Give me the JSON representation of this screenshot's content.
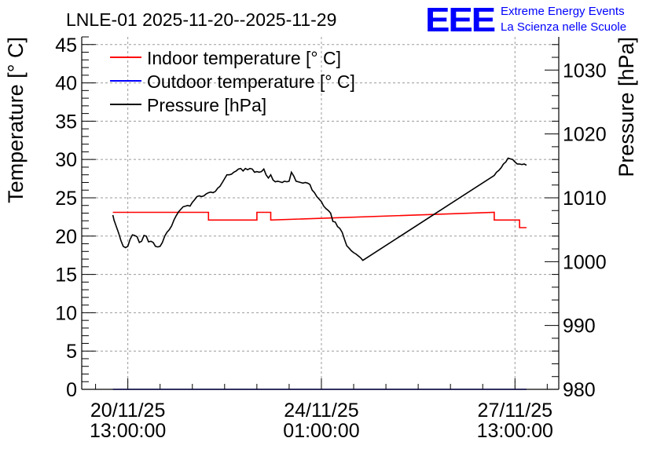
{
  "chart_data": {
    "type": "line",
    "title": "LNLE-01 2025-11-20--2025-11-29",
    "logo": {
      "mark": "EEE",
      "line1": "Extreme Energy Events",
      "line2": "La Scienza nelle Scuole",
      "color": "#0000ff"
    },
    "ylabel": "Temperature [° C]",
    "y2label": "Pressure [hPa]",
    "ylim": [
      0,
      46
    ],
    "y2lim": [
      980,
      1035.2
    ],
    "yticks": [
      0,
      5,
      10,
      15,
      20,
      25,
      30,
      35,
      40,
      45
    ],
    "y2ticks": [
      980,
      990,
      1000,
      1010,
      1020,
      1030
    ],
    "x_unit": "hours since 2025-11-20 00:00",
    "xlim": [
      -7.0,
      200.0
    ],
    "xticks": [
      {
        "x": 13,
        "date": "20/11/25",
        "time": "13:00:00"
      },
      {
        "x": 97,
        "date": "24/11/25",
        "time": "01:00:00"
      },
      {
        "x": 181,
        "date": "27/11/25",
        "time": "13:00:00"
      }
    ],
    "grid": true,
    "legend": [
      {
        "label": "Indoor temperature [° C]",
        "color": "#ff0000"
      },
      {
        "label": "Outdoor temperature [° C]",
        "color": "#0000ff"
      },
      {
        "label": "Pressure [hPa]",
        "color": "#000000"
      }
    ],
    "series": [
      {
        "name": "Indoor temperature [° C]",
        "axis": "left",
        "color": "#ff0000",
        "x": [
          6.5,
          48,
          48,
          69,
          69,
          75,
          75,
          172,
          172,
          183,
          183,
          186
        ],
        "y": [
          23.1,
          23.1,
          22.1,
          22.1,
          23.1,
          23.1,
          22.1,
          23.1,
          22.1,
          22.1,
          21.1,
          21.1
        ]
      },
      {
        "name": "Outdoor temperature [° C]",
        "axis": "left",
        "color": "#0000ff",
        "x": [
          6.5,
          186
        ],
        "y": [
          0,
          0
        ]
      },
      {
        "name": "Pressure [hPa]",
        "axis": "right",
        "color": "#000000",
        "x": [
          6.5,
          7,
          8,
          9,
          10,
          11,
          12,
          13,
          14,
          15,
          16,
          17,
          18,
          19,
          20,
          21,
          22,
          23,
          24,
          25,
          26,
          27,
          28,
          29,
          30,
          31,
          32,
          33,
          34,
          35,
          36,
          37,
          38,
          39,
          40,
          41,
          42,
          43,
          44,
          45,
          46,
          47,
          48,
          49,
          50,
          51,
          52,
          53,
          54,
          55,
          56,
          57,
          58,
          59,
          60,
          61,
          62,
          63,
          64,
          65,
          66,
          67,
          68,
          69,
          70,
          71,
          72,
          73,
          74,
          75,
          76,
          77,
          78,
          79,
          80,
          81,
          82,
          83,
          84,
          85,
          86,
          87,
          88,
          89,
          90,
          91,
          92,
          93,
          94,
          95,
          96,
          97,
          98,
          99,
          100,
          101,
          102,
          103,
          104,
          105,
          106,
          107,
          108,
          109,
          110,
          111,
          112,
          113,
          114,
          115,
          172,
          173,
          174,
          175,
          176,
          177,
          178,
          179,
          180,
          181,
          182,
          183,
          184,
          185,
          186
        ],
        "y": [
          1007.3,
          1006.5,
          1005.5,
          1004.5,
          1003.3,
          1002.4,
          1002.2,
          1002.4,
          1003.5,
          1004.2,
          1004.1,
          1003.9,
          1003.0,
          1003.2,
          1004.1,
          1004.0,
          1003.1,
          1003.2,
          1003.0,
          1002.4,
          1002.3,
          1002.4,
          1003.0,
          1004.0,
          1004.6,
          1005.0,
          1005.6,
          1006.5,
          1007.2,
          1007.8,
          1008.2,
          1008.6,
          1008.7,
          1008.8,
          1008.7,
          1009.3,
          1009.7,
          1010.2,
          1010.3,
          1010.2,
          1010.3,
          1010.6,
          1010.8,
          1010.9,
          1010.8,
          1011.0,
          1011.5,
          1011.8,
          1012.4,
          1013.0,
          1013.6,
          1013.6,
          1013.7,
          1014.0,
          1014.2,
          1014.5,
          1014.6,
          1014.2,
          1014.6,
          1014.4,
          1014.6,
          1014.5,
          1014.0,
          1014.1,
          1014.0,
          1014.1,
          1014.5,
          1013.6,
          1013.1,
          1013.6,
          1012.8,
          1012.5,
          1012.6,
          1012.5,
          1012.4,
          1012.6,
          1012.5,
          1012.6,
          1014.0,
          1013.4,
          1012.6,
          1012.5,
          1012.4,
          1012.3,
          1012.4,
          1012.3,
          1012.1,
          1011.2,
          1010.8,
          1010.2,
          1009.8,
          1009.4,
          1008.7,
          1008.3,
          1008.0,
          1007.6,
          1006.3,
          1006.2,
          1005.5,
          1005.2,
          1004.6,
          1003.5,
          1002.5,
          1002.1,
          1001.7,
          1001.4,
          1001.2,
          1000.9,
          1000.6,
          1000.2,
          1013.5,
          1014.0,
          1014.3,
          1014.7,
          1015.3,
          1015.6,
          1016.2,
          1016.1,
          1016.0,
          1015.6,
          1015.3,
          1015.3,
          1015.2,
          1015.3,
          1015.1
        ]
      }
    ]
  }
}
